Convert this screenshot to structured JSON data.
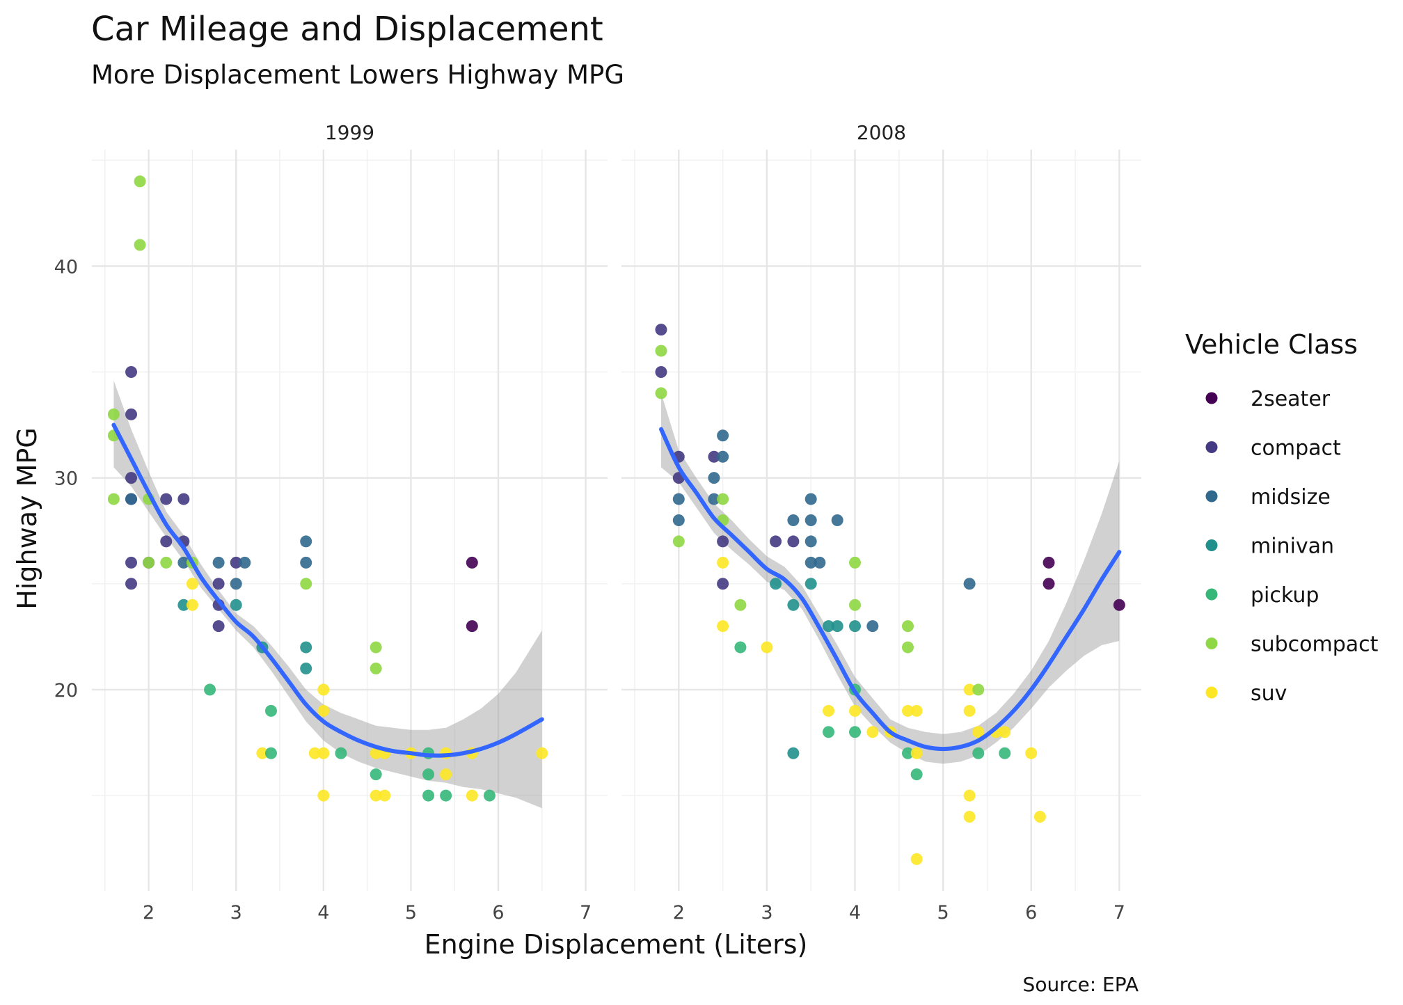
{
  "chart_data": {
    "type": "scatter",
    "title": "Car Mileage and Displacement",
    "subtitle": "More Displacement Lowers Highway MPG",
    "xlabel": "Engine Displacement (Liters)",
    "ylabel": "Highway MPG",
    "caption": "Source: EPA",
    "legend_title": "Vehicle Class",
    "legend_position": "right",
    "xlim": [
      1.35,
      7.25
    ],
    "ylim": [
      10.5,
      45.5
    ],
    "x_ticks": [
      2,
      3,
      4,
      5,
      6,
      7
    ],
    "y_ticks": [
      20,
      30,
      40
    ],
    "grid": true,
    "classes": [
      {
        "name": "2seater",
        "color": "#440154"
      },
      {
        "name": "compact",
        "color": "#443a83"
      },
      {
        "name": "midsize",
        "color": "#31688e"
      },
      {
        "name": "minivan",
        "color": "#21908c"
      },
      {
        "name": "pickup",
        "color": "#35b779"
      },
      {
        "name": "subcompact",
        "color": "#8fd744"
      },
      {
        "name": "suv",
        "color": "#fde725"
      }
    ],
    "trend_color": "#3366ff",
    "band_color": "#999999",
    "facets": [
      {
        "label": "1999",
        "points": [
          {
            "x": 1.6,
            "y": 33,
            "c": "subcompact"
          },
          {
            "x": 1.6,
            "y": 32,
            "c": "subcompact"
          },
          {
            "x": 1.6,
            "y": 29,
            "c": "subcompact"
          },
          {
            "x": 1.8,
            "y": 35,
            "c": "compact"
          },
          {
            "x": 1.8,
            "y": 33,
            "c": "compact"
          },
          {
            "x": 1.8,
            "y": 30,
            "c": "compact"
          },
          {
            "x": 1.8,
            "y": 29,
            "c": "compact"
          },
          {
            "x": 1.8,
            "y": 29,
            "c": "midsize"
          },
          {
            "x": 1.8,
            "y": 26,
            "c": "compact"
          },
          {
            "x": 1.8,
            "y": 25,
            "c": "compact"
          },
          {
            "x": 1.9,
            "y": 44,
            "c": "subcompact"
          },
          {
            "x": 1.9,
            "y": 41,
            "c": "subcompact"
          },
          {
            "x": 2.0,
            "y": 29,
            "c": "subcompact"
          },
          {
            "x": 2.0,
            "y": 26,
            "c": "compact"
          },
          {
            "x": 2.0,
            "y": 26,
            "c": "subcompact"
          },
          {
            "x": 2.2,
            "y": 29,
            "c": "compact"
          },
          {
            "x": 2.2,
            "y": 27,
            "c": "compact"
          },
          {
            "x": 2.2,
            "y": 26,
            "c": "subcompact"
          },
          {
            "x": 2.4,
            "y": 29,
            "c": "compact"
          },
          {
            "x": 2.4,
            "y": 27,
            "c": "compact"
          },
          {
            "x": 2.4,
            "y": 26,
            "c": "midsize"
          },
          {
            "x": 2.4,
            "y": 24,
            "c": "minivan"
          },
          {
            "x": 2.5,
            "y": 26,
            "c": "subcompact"
          },
          {
            "x": 2.5,
            "y": 25,
            "c": "suv"
          },
          {
            "x": 2.5,
            "y": 24,
            "c": "suv"
          },
          {
            "x": 2.7,
            "y": 20,
            "c": "pickup"
          },
          {
            "x": 2.8,
            "y": 26,
            "c": "midsize"
          },
          {
            "x": 2.8,
            "y": 25,
            "c": "compact"
          },
          {
            "x": 2.8,
            "y": 24,
            "c": "compact"
          },
          {
            "x": 2.8,
            "y": 23,
            "c": "compact"
          },
          {
            "x": 3.0,
            "y": 26,
            "c": "compact"
          },
          {
            "x": 3.0,
            "y": 25,
            "c": "midsize"
          },
          {
            "x": 3.0,
            "y": 24,
            "c": "minivan"
          },
          {
            "x": 3.1,
            "y": 26,
            "c": "midsize"
          },
          {
            "x": 3.3,
            "y": 22,
            "c": "minivan"
          },
          {
            "x": 3.3,
            "y": 17,
            "c": "suv"
          },
          {
            "x": 3.4,
            "y": 19,
            "c": "pickup"
          },
          {
            "x": 3.4,
            "y": 17,
            "c": "pickup"
          },
          {
            "x": 3.8,
            "y": 27,
            "c": "midsize"
          },
          {
            "x": 3.8,
            "y": 26,
            "c": "midsize"
          },
          {
            "x": 3.8,
            "y": 25,
            "c": "subcompact"
          },
          {
            "x": 3.8,
            "y": 22,
            "c": "minivan"
          },
          {
            "x": 3.8,
            "y": 21,
            "c": "minivan"
          },
          {
            "x": 3.9,
            "y": 17,
            "c": "suv"
          },
          {
            "x": 4.0,
            "y": 20,
            "c": "suv"
          },
          {
            "x": 4.0,
            "y": 19,
            "c": "suv"
          },
          {
            "x": 4.0,
            "y": 17,
            "c": "suv"
          },
          {
            "x": 4.0,
            "y": 15,
            "c": "suv"
          },
          {
            "x": 4.2,
            "y": 17,
            "c": "pickup"
          },
          {
            "x": 4.6,
            "y": 22,
            "c": "subcompact"
          },
          {
            "x": 4.6,
            "y": 21,
            "c": "subcompact"
          },
          {
            "x": 4.6,
            "y": 17,
            "c": "suv"
          },
          {
            "x": 4.6,
            "y": 16,
            "c": "pickup"
          },
          {
            "x": 4.6,
            "y": 15,
            "c": "suv"
          },
          {
            "x": 4.7,
            "y": 17,
            "c": "suv"
          },
          {
            "x": 4.7,
            "y": 15,
            "c": "suv"
          },
          {
            "x": 5.0,
            "y": 17,
            "c": "suv"
          },
          {
            "x": 5.2,
            "y": 17,
            "c": "pickup"
          },
          {
            "x": 5.2,
            "y": 16,
            "c": "pickup"
          },
          {
            "x": 5.2,
            "y": 15,
            "c": "pickup"
          },
          {
            "x": 5.4,
            "y": 17,
            "c": "suv"
          },
          {
            "x": 5.4,
            "y": 16,
            "c": "suv"
          },
          {
            "x": 5.4,
            "y": 15,
            "c": "pickup"
          },
          {
            "x": 5.7,
            "y": 26,
            "c": "2seater"
          },
          {
            "x": 5.7,
            "y": 23,
            "c": "2seater"
          },
          {
            "x": 5.7,
            "y": 17,
            "c": "suv"
          },
          {
            "x": 5.7,
            "y": 15,
            "c": "suv"
          },
          {
            "x": 5.9,
            "y": 15,
            "c": "pickup"
          },
          {
            "x": 6.5,
            "y": 17,
            "c": "suv"
          }
        ],
        "trend": {
          "x": [
            1.6,
            1.8,
            2.0,
            2.2,
            2.4,
            2.6,
            2.8,
            3.0,
            3.2,
            3.4,
            3.6,
            3.8,
            4.0,
            4.2,
            4.4,
            4.6,
            4.8,
            5.0,
            5.2,
            5.4,
            5.6,
            5.8,
            6.0,
            6.2,
            6.5
          ],
          "y": [
            32.5,
            30.9,
            29.3,
            27.8,
            26.7,
            25.3,
            24.2,
            23.2,
            22.5,
            21.5,
            20.4,
            19.3,
            18.5,
            18.0,
            17.6,
            17.3,
            17.1,
            17.0,
            16.9,
            16.9,
            17.0,
            17.2,
            17.5,
            17.9,
            18.6
          ],
          "lower": [
            30.5,
            29.6,
            28.4,
            27.2,
            26.1,
            24.8,
            23.8,
            22.8,
            22.0,
            20.9,
            19.7,
            18.5,
            17.6,
            17.0,
            16.6,
            16.3,
            16.1,
            15.9,
            15.7,
            15.6,
            15.4,
            15.3,
            15.1,
            14.9,
            14.4
          ],
          "upper": [
            34.6,
            32.3,
            30.3,
            28.4,
            27.3,
            25.9,
            24.7,
            23.6,
            23.0,
            22.1,
            21.1,
            20.0,
            19.3,
            18.9,
            18.6,
            18.3,
            18.2,
            18.1,
            18.1,
            18.2,
            18.6,
            19.1,
            19.8,
            20.8,
            22.8
          ]
        }
      },
      {
        "label": "2008",
        "points": [
          {
            "x": 1.8,
            "y": 37,
            "c": "compact"
          },
          {
            "x": 1.8,
            "y": 36,
            "c": "subcompact"
          },
          {
            "x": 1.8,
            "y": 35,
            "c": "compact"
          },
          {
            "x": 1.8,
            "y": 34,
            "c": "subcompact"
          },
          {
            "x": 2.0,
            "y": 31,
            "c": "compact"
          },
          {
            "x": 2.0,
            "y": 30,
            "c": "compact"
          },
          {
            "x": 2.0,
            "y": 29,
            "c": "midsize"
          },
          {
            "x": 2.0,
            "y": 28,
            "c": "midsize"
          },
          {
            "x": 2.0,
            "y": 27,
            "c": "subcompact"
          },
          {
            "x": 2.4,
            "y": 31,
            "c": "compact"
          },
          {
            "x": 2.4,
            "y": 30,
            "c": "midsize"
          },
          {
            "x": 2.4,
            "y": 29,
            "c": "midsize"
          },
          {
            "x": 2.5,
            "y": 32,
            "c": "midsize"
          },
          {
            "x": 2.5,
            "y": 31,
            "c": "midsize"
          },
          {
            "x": 2.5,
            "y": 29,
            "c": "subcompact"
          },
          {
            "x": 2.5,
            "y": 28,
            "c": "subcompact"
          },
          {
            "x": 2.5,
            "y": 27,
            "c": "compact"
          },
          {
            "x": 2.5,
            "y": 26,
            "c": "suv"
          },
          {
            "x": 2.5,
            "y": 25,
            "c": "compact"
          },
          {
            "x": 2.5,
            "y": 23,
            "c": "suv"
          },
          {
            "x": 2.7,
            "y": 24,
            "c": "subcompact"
          },
          {
            "x": 2.7,
            "y": 22,
            "c": "pickup"
          },
          {
            "x": 3.0,
            "y": 22,
            "c": "suv"
          },
          {
            "x": 3.1,
            "y": 27,
            "c": "compact"
          },
          {
            "x": 3.1,
            "y": 25,
            "c": "minivan"
          },
          {
            "x": 3.3,
            "y": 28,
            "c": "midsize"
          },
          {
            "x": 3.3,
            "y": 27,
            "c": "compact"
          },
          {
            "x": 3.3,
            "y": 24,
            "c": "minivan"
          },
          {
            "x": 3.3,
            "y": 17,
            "c": "minivan"
          },
          {
            "x": 3.5,
            "y": 29,
            "c": "midsize"
          },
          {
            "x": 3.5,
            "y": 28,
            "c": "midsize"
          },
          {
            "x": 3.5,
            "y": 27,
            "c": "midsize"
          },
          {
            "x": 3.5,
            "y": 26,
            "c": "midsize"
          },
          {
            "x": 3.5,
            "y": 25,
            "c": "minivan"
          },
          {
            "x": 3.6,
            "y": 26,
            "c": "midsize"
          },
          {
            "x": 3.7,
            "y": 23,
            "c": "minivan"
          },
          {
            "x": 3.7,
            "y": 19,
            "c": "suv"
          },
          {
            "x": 3.7,
            "y": 18,
            "c": "pickup"
          },
          {
            "x": 3.8,
            "y": 28,
            "c": "midsize"
          },
          {
            "x": 3.8,
            "y": 23,
            "c": "minivan"
          },
          {
            "x": 4.0,
            "y": 26,
            "c": "subcompact"
          },
          {
            "x": 4.0,
            "y": 24,
            "c": "subcompact"
          },
          {
            "x": 4.0,
            "y": 23,
            "c": "minivan"
          },
          {
            "x": 4.0,
            "y": 20,
            "c": "pickup"
          },
          {
            "x": 4.0,
            "y": 19,
            "c": "suv"
          },
          {
            "x": 4.0,
            "y": 18,
            "c": "pickup"
          },
          {
            "x": 4.2,
            "y": 23,
            "c": "midsize"
          },
          {
            "x": 4.2,
            "y": 18,
            "c": "suv"
          },
          {
            "x": 4.4,
            "y": 18,
            "c": "suv"
          },
          {
            "x": 4.6,
            "y": 23,
            "c": "subcompact"
          },
          {
            "x": 4.6,
            "y": 22,
            "c": "subcompact"
          },
          {
            "x": 4.6,
            "y": 19,
            "c": "suv"
          },
          {
            "x": 4.6,
            "y": 17,
            "c": "pickup"
          },
          {
            "x": 4.7,
            "y": 19,
            "c": "suv"
          },
          {
            "x": 4.7,
            "y": 17,
            "c": "suv"
          },
          {
            "x": 4.7,
            "y": 16,
            "c": "pickup"
          },
          {
            "x": 4.7,
            "y": 12,
            "c": "suv"
          },
          {
            "x": 5.3,
            "y": 25,
            "c": "midsize"
          },
          {
            "x": 5.3,
            "y": 20,
            "c": "suv"
          },
          {
            "x": 5.3,
            "y": 19,
            "c": "suv"
          },
          {
            "x": 5.3,
            "y": 15,
            "c": "suv"
          },
          {
            "x": 5.3,
            "y": 14,
            "c": "suv"
          },
          {
            "x": 5.4,
            "y": 20,
            "c": "subcompact"
          },
          {
            "x": 5.4,
            "y": 18,
            "c": "suv"
          },
          {
            "x": 5.4,
            "y": 17,
            "c": "pickup"
          },
          {
            "x": 5.6,
            "y": 18,
            "c": "suv"
          },
          {
            "x": 5.7,
            "y": 18,
            "c": "suv"
          },
          {
            "x": 5.7,
            "y": 17,
            "c": "pickup"
          },
          {
            "x": 6.0,
            "y": 17,
            "c": "suv"
          },
          {
            "x": 6.1,
            "y": 14,
            "c": "suv"
          },
          {
            "x": 6.2,
            "y": 26,
            "c": "2seater"
          },
          {
            "x": 6.2,
            "y": 25,
            "c": "2seater"
          },
          {
            "x": 7.0,
            "y": 24,
            "c": "2seater"
          }
        ],
        "trend": {
          "x": [
            1.8,
            2.0,
            2.2,
            2.4,
            2.6,
            2.8,
            3.0,
            3.2,
            3.4,
            3.6,
            3.8,
            4.0,
            4.2,
            4.4,
            4.6,
            4.8,
            5.0,
            5.2,
            5.4,
            5.6,
            5.8,
            6.0,
            6.2,
            6.4,
            6.6,
            6.8,
            7.0
          ],
          "y": [
            32.3,
            30.5,
            29.3,
            28.1,
            27.3,
            26.5,
            25.7,
            25.2,
            24.3,
            22.9,
            21.4,
            19.9,
            18.9,
            18.0,
            17.6,
            17.3,
            17.2,
            17.3,
            17.6,
            18.2,
            19.0,
            20.0,
            21.2,
            22.5,
            23.8,
            25.2,
            26.5
          ],
          "lower": [
            30.5,
            29.8,
            28.6,
            27.4,
            26.6,
            25.9,
            25.1,
            24.7,
            23.8,
            22.3,
            20.7,
            19.2,
            18.3,
            17.5,
            17.0,
            16.6,
            16.5,
            16.6,
            16.9,
            17.5,
            18.2,
            19.1,
            20.1,
            20.9,
            21.6,
            22.1,
            22.3
          ],
          "upper": [
            34.0,
            31.3,
            30.0,
            28.8,
            28.0,
            27.1,
            26.3,
            25.8,
            24.9,
            23.5,
            22.1,
            20.6,
            19.6,
            18.6,
            18.2,
            18.0,
            17.9,
            18.0,
            18.3,
            18.9,
            19.8,
            20.9,
            22.3,
            24.1,
            26.1,
            28.3,
            30.8
          ]
        }
      }
    ]
  }
}
